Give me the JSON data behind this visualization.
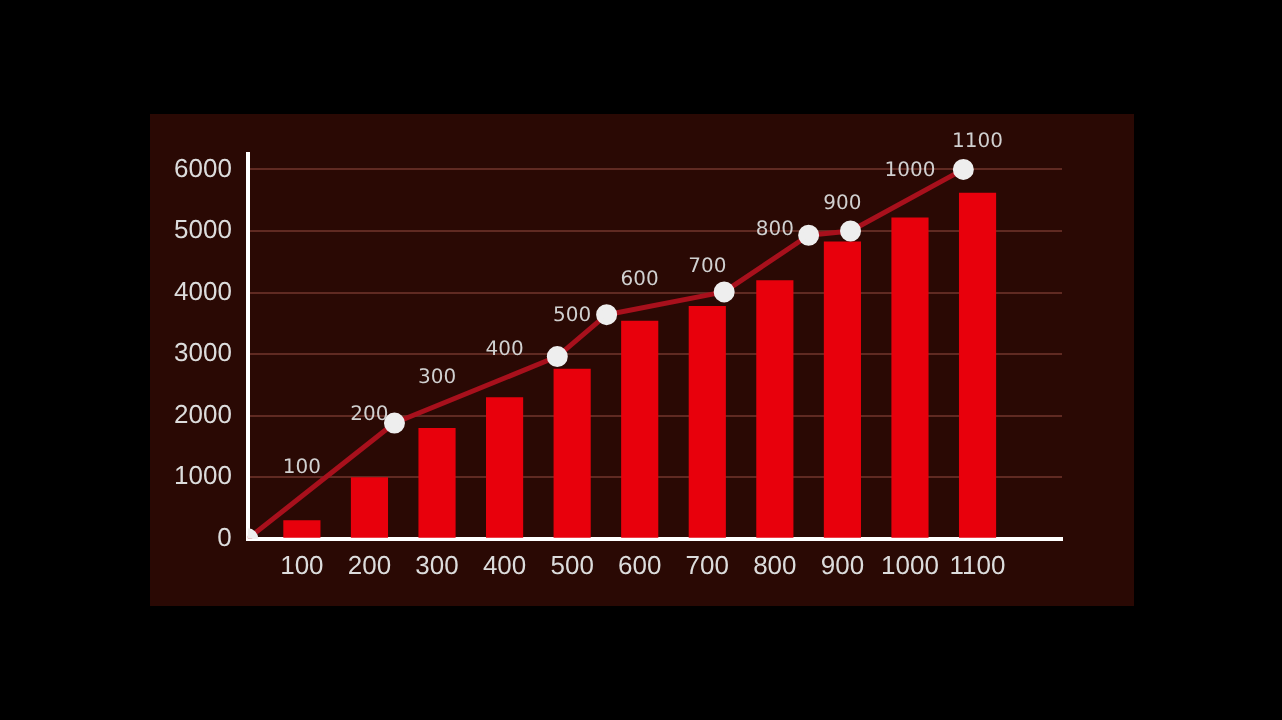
{
  "chart_data": {
    "type": "bar",
    "x": [
      100,
      200,
      300,
      400,
      500,
      600,
      700,
      800,
      900,
      1000,
      1100
    ],
    "xlim": [
      20,
      1225
    ],
    "xticks": [
      100,
      200,
      300,
      400,
      500,
      600,
      700,
      800,
      900,
      1000,
      1100
    ],
    "ylim": [
      0,
      6250
    ],
    "yticks": [
      0,
      1000,
      2000,
      3000,
      4000,
      5000,
      6000
    ],
    "grid": "y",
    "marker": "circle",
    "series": [
      {
        "color": "#e8000c",
        "values": [
          300,
          1000,
          1800,
          2300,
          2760,
          3540,
          3780,
          4200,
          4830,
          5220,
          5620
        ]
      },
      {
        "type": "line",
        "color": "#a8101c",
        "x": [
          20,
          237,
          478,
          551,
          725,
          850,
          912,
          1079
        ],
        "values": [
          0,
          1880,
          2960,
          3640,
          4010,
          4930,
          5000,
          6000
        ]
      }
    ],
    "annotations": [
      "100",
      "200",
      "300",
      "400",
      "500",
      "600",
      "700",
      "800",
      "900",
      "1000",
      "1100"
    ]
  }
}
